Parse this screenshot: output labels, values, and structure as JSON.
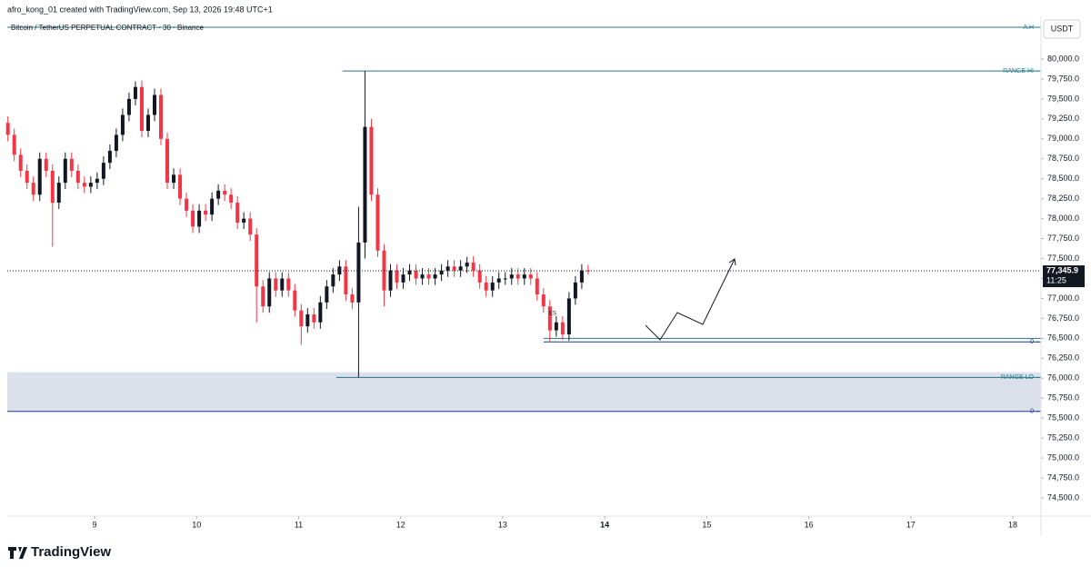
{
  "header": "afro_kong_01 created with TradingView.com, Sep 13, 2026 19:48 UTC+1",
  "currency": "USDT",
  "logo": "TradingView",
  "chart_data": {
    "type": "candlestick",
    "title": "Bitcoin / TetherUS PERPETUAL CONTRACT · 30 · Binance",
    "annotation": "ES",
    "up_color": "#131722",
    "down_color": "#f23645",
    "x": [
      8.15,
      8.2125,
      8.275,
      8.3375,
      8.4,
      8.4625,
      8.525,
      8.5875,
      8.65,
      8.7125,
      8.775,
      8.8375,
      8.9,
      8.9625,
      9.025,
      9.0875,
      9.15,
      9.2125,
      9.275,
      9.3375,
      9.4,
      9.4625,
      9.525,
      9.5875,
      9.65,
      9.7125,
      9.775,
      9.8375,
      9.9,
      9.9625,
      10.025,
      10.0875,
      10.15,
      10.2125,
      10.275,
      10.3375,
      10.4,
      10.4625,
      10.525,
      10.5875,
      10.65,
      10.7125,
      10.775,
      10.8375,
      10.9,
      10.9625,
      11.025,
      11.0875,
      11.15,
      11.2125,
      11.275,
      11.3375,
      11.4,
      11.4625,
      11.525,
      11.5875,
      11.65,
      11.7125,
      11.775,
      11.8375,
      11.9,
      11.9625,
      12.025,
      12.0875,
      12.15,
      12.2125,
      12.275,
      12.3375,
      12.4,
      12.4625,
      12.525,
      12.5875,
      12.65,
      12.7125,
      12.775,
      12.8375,
      12.9,
      12.9625,
      13.025,
      13.0875,
      13.15,
      13.2125,
      13.275,
      13.3375,
      13.4,
      13.4625,
      13.525,
      13.5875,
      13.65,
      13.7125,
      13.775,
      13.8375
    ],
    "open": [
      79200,
      79050,
      78800,
      78600,
      78450,
      78300,
      78750,
      78600,
      78200,
      78450,
      78750,
      78600,
      78450,
      78400,
      78450,
      78500,
      78700,
      78850,
      79050,
      79300,
      79500,
      79650,
      79100,
      79300,
      79550,
      79000,
      78450,
      78550,
      78250,
      78100,
      77900,
      78100,
      78050,
      78250,
      78350,
      78300,
      78200,
      77950,
      78000,
      77800,
      77150,
      76900,
      77250,
      77100,
      77250,
      77100,
      76850,
      76650,
      76800,
      76700,
      76950,
      77150,
      77300,
      77400,
      77050,
      76950,
      77700,
      79150,
      78300,
      77600,
      77100,
      77350,
      77200,
      77300,
      77350,
      77250,
      77300,
      77250,
      77300,
      77350,
      77400,
      77350,
      77400,
      77450,
      77350,
      77200,
      77100,
      77200,
      77250,
      77250,
      77300,
      77250,
      77300,
      77250,
      77050,
      76900,
      76600,
      76700,
      76550,
      77000,
      77200,
      77350
    ],
    "high": [
      79280,
      79130,
      78880,
      78680,
      78530,
      78830,
      78830,
      78680,
      78530,
      78830,
      78830,
      78680,
      78530,
      78530,
      78580,
      78780,
      78930,
      79130,
      79380,
      79580,
      79720,
      79730,
      79380,
      79630,
      79630,
      79080,
      78630,
      78630,
      78330,
      78180,
      78180,
      78180,
      78330,
      78430,
      78430,
      78380,
      78280,
      78080,
      78080,
      77880,
      77230,
      77330,
      77330,
      77330,
      77330,
      77180,
      76930,
      76880,
      76880,
      77030,
      77230,
      77380,
      77480,
      77480,
      77130,
      78150,
      79850,
      79250,
      78380,
      77680,
      77430,
      77430,
      77380,
      77430,
      77430,
      77380,
      77380,
      77380,
      77430,
      77480,
      77480,
      77480,
      77520,
      77530,
      77430,
      77280,
      77280,
      77330,
      77330,
      77380,
      77380,
      77380,
      77380,
      77330,
      77130,
      76980,
      76780,
      76780,
      77080,
      77280,
      77430,
      77420
    ],
    "low": [
      78970,
      78720,
      78520,
      78370,
      78220,
      78220,
      78520,
      77650,
      78120,
      78370,
      78520,
      78370,
      78320,
      78320,
      78370,
      78420,
      78620,
      78770,
      78970,
      79220,
      79420,
      79020,
      79020,
      79220,
      78920,
      78370,
      78370,
      78170,
      78020,
      77820,
      77820,
      77970,
      77970,
      78170,
      78220,
      78120,
      77870,
      77870,
      77720,
      76700,
      76820,
      76820,
      77020,
      77020,
      77020,
      76770,
      76420,
      76570,
      76620,
      76620,
      76870,
      77070,
      77220,
      76970,
      76870,
      76010,
      77500,
      78220,
      77520,
      76900,
      77020,
      77120,
      77120,
      77220,
      77170,
      77170,
      77170,
      77170,
      77220,
      77270,
      77270,
      77270,
      77320,
      77270,
      77120,
      77020,
      77020,
      77120,
      77170,
      77170,
      77170,
      77170,
      77170,
      76970,
      76820,
      76460,
      76520,
      76480,
      76470,
      76920,
      77120,
      77300
    ],
    "close": [
      79050,
      78800,
      78600,
      78450,
      78300,
      78750,
      78600,
      78200,
      78450,
      78750,
      78600,
      78450,
      78400,
      78450,
      78500,
      78700,
      78850,
      79050,
      79300,
      79500,
      79650,
      79100,
      79300,
      79550,
      79000,
      78450,
      78550,
      78250,
      78100,
      77900,
      78100,
      78050,
      78250,
      78350,
      78300,
      78200,
      77950,
      78000,
      77800,
      77150,
      76900,
      77250,
      77100,
      77250,
      77100,
      76850,
      76650,
      76800,
      76700,
      76950,
      77150,
      77300,
      77400,
      77050,
      76950,
      77700,
      79150,
      78300,
      77600,
      77100,
      77350,
      77200,
      77300,
      77350,
      77250,
      77300,
      77250,
      77300,
      77350,
      77400,
      77350,
      77400,
      77450,
      77350,
      77200,
      77100,
      77200,
      77250,
      77250,
      77300,
      77250,
      77300,
      77250,
      77050,
      76900,
      76600,
      76700,
      76550,
      77000,
      77200,
      77350,
      77345.9
    ],
    "xlim": [
      8.144,
      18.276
    ],
    "xticks": [
      9,
      10,
      11,
      12,
      13,
      14,
      15,
      16,
      17,
      18
    ],
    "ylim": [
      74272,
      80535
    ],
    "yticks": [
      {
        "value": 74500,
        "label": "74,500.0"
      },
      {
        "value": 74750,
        "label": "74,750.0"
      },
      {
        "value": 75000,
        "label": "75,000.0"
      },
      {
        "value": 75250,
        "label": "75,250.0"
      },
      {
        "value": 75500,
        "label": "75,500.0"
      },
      {
        "value": 75750,
        "label": "75,750.0"
      },
      {
        "value": 76000,
        "label": "76,000.0"
      },
      {
        "value": 76250,
        "label": "76,250.0"
      },
      {
        "value": 76500,
        "label": "76,500.0"
      },
      {
        "value": 76750,
        "label": "76,750.0"
      },
      {
        "value": 77000,
        "label": "77,000.0"
      },
      {
        "value": 77250,
        "label": "77,250.0"
      },
      {
        "value": 77500,
        "label": "77,500.0"
      },
      {
        "value": 77750,
        "label": "77,750.0"
      },
      {
        "value": 78000,
        "label": "78,000.0"
      },
      {
        "value": 78250,
        "label": "78,250.0"
      },
      {
        "value": 78500,
        "label": "78,500.0"
      },
      {
        "value": 78750,
        "label": "78,750.0"
      },
      {
        "value": 79000,
        "label": "79,000.0"
      },
      {
        "value": 79250,
        "label": "79,250.0"
      },
      {
        "value": 79500,
        "label": "79,500.0"
      },
      {
        "value": 79750,
        "label": "79,750.0"
      },
      {
        "value": 80000,
        "label": "80,000.0"
      }
    ],
    "zone": {
      "from": 76075,
      "to": 75585,
      "color": "#d6dbe8"
    },
    "hlines": [
      {
        "value": 80399,
        "label": "A.H",
        "start": 8.144,
        "color": "#26788a"
      },
      {
        "value": 79850,
        "label": "RANGE HI",
        "start": 11.43,
        "color": "#26788a"
      },
      {
        "value": 76010,
        "label": "RANGE LO",
        "start": 11.37,
        "color": "#26788a"
      },
      {
        "value": 76500,
        "start": 13.4,
        "color": "#26788a"
      },
      {
        "value": 76455,
        "label": "0",
        "start": 13.4,
        "color": "#1e3a8a"
      },
      {
        "value": 75585,
        "label": "0",
        "start": 8.144,
        "color": "#1e3a8a"
      }
    ],
    "last_price": {
      "value": 77345.9,
      "label": "77,345.9"
    },
    "countdown": "11:25"
  }
}
